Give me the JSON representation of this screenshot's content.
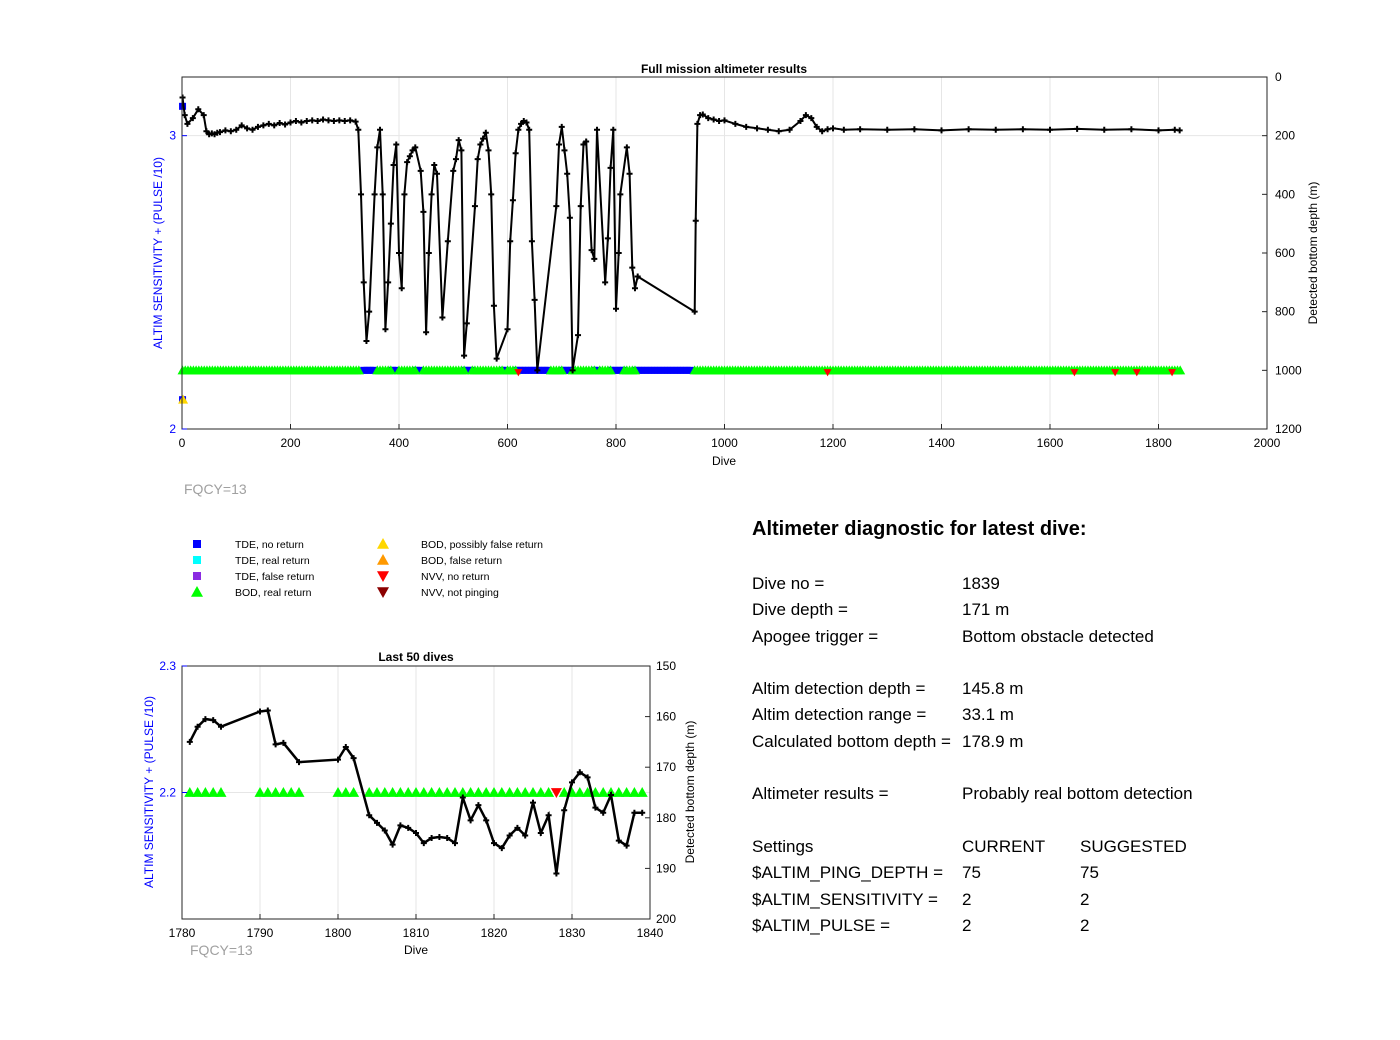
{
  "colors": {
    "tde_no_return": "#0000ff",
    "tde_real_return": "#00ffff",
    "tde_false_return": "#8b2be2",
    "bod_real_return": "#00ff00",
    "bod_possibly_false": "#ffd700",
    "bod_false_return": "#ff9900",
    "nvv_no_return": "#ff0000",
    "nvv_not_pinging": "#8b0000",
    "left_axis": "#0000ff",
    "depth_line": "#000000",
    "fqcy_text": "#a0a0a0"
  },
  "legend": {
    "items": [
      {
        "label": "TDE, no return",
        "marker": "square",
        "color": "#0000ff"
      },
      {
        "label": "TDE, real return",
        "marker": "square",
        "color": "#00ffff"
      },
      {
        "label": "TDE, false return",
        "marker": "square",
        "color": "#8b2be2"
      },
      {
        "label": "BOD, real return",
        "marker": "triangle-up",
        "color": "#00ff00"
      },
      {
        "label": "BOD, possibly false return",
        "marker": "triangle-up",
        "color": "#ffd700"
      },
      {
        "label": "BOD, false return",
        "marker": "triangle-up",
        "color": "#ff9900"
      },
      {
        "label": "NVV, no return",
        "marker": "triangle-down",
        "color": "#ff0000"
      },
      {
        "label": "NVV, not pinging",
        "marker": "triangle-down",
        "color": "#8b0000"
      }
    ]
  },
  "diagnostic": {
    "title": "Altimeter diagnostic for latest dive:",
    "rows": [
      {
        "label": "Dive no =",
        "value": "1839",
        "value2": ""
      },
      {
        "label": "Dive depth =",
        "value": "171 m",
        "value2": ""
      },
      {
        "label": "Apogee trigger =",
        "value": "Bottom obstacle detected",
        "value2": ""
      },
      {
        "label": "",
        "value": "",
        "value2": ""
      },
      {
        "label": "Altim detection depth =",
        "value": "145.8 m",
        "value2": ""
      },
      {
        "label": "Altim detection range =",
        "value": "33.1 m",
        "value2": ""
      },
      {
        "label": "Calculated bottom depth =",
        "value": "178.9 m",
        "value2": ""
      },
      {
        "label": "",
        "value": "",
        "value2": ""
      },
      {
        "label": "Altimeter results =",
        "value": "Probably real bottom detection",
        "value2": ""
      },
      {
        "label": "",
        "value": "",
        "value2": ""
      },
      {
        "label": "Settings",
        "value": "CURRENT",
        "value2": "SUGGESTED"
      },
      {
        "label": "$ALTIM_PING_DEPTH =",
        "value": "75",
        "value2": "75"
      },
      {
        "label": "$ALTIM_SENSITIVITY =",
        "value": "2",
        "value2": "2"
      },
      {
        "label": "$ALTIM_PULSE =",
        "value": "2",
        "value2": "2"
      }
    ]
  },
  "chart_data": [
    {
      "type": "line",
      "title": "Full mission altimeter results",
      "xlabel": "Dive",
      "ylabel_left": "ALTIM SENSITIVITY + (PULSE /10)",
      "ylabel_right": "Detected bottom depth (m)",
      "footnote": "FQCY=13",
      "xlim": [
        0,
        2000
      ],
      "xticks": [
        0,
        200,
        400,
        600,
        800,
        1000,
        1200,
        1400,
        1600,
        1800,
        2000
      ],
      "ylim_left": [
        2,
        3.2
      ],
      "yticks_left": [
        2,
        3
      ],
      "ylim_right": [
        1200,
        0
      ],
      "yticks_right": [
        0,
        200,
        400,
        600,
        800,
        1000,
        1200
      ],
      "grid": true,
      "depth_series": {
        "name": "Detected bottom depth",
        "x": [
          1,
          5,
          10,
          20,
          30,
          40,
          45,
          50,
          55,
          60,
          65,
          70,
          80,
          90,
          100,
          110,
          120,
          130,
          140,
          150,
          160,
          170,
          180,
          190,
          200,
          210,
          220,
          230,
          240,
          250,
          260,
          270,
          280,
          290,
          300,
          310,
          320,
          325,
          330,
          335,
          340,
          345,
          355,
          360,
          365,
          370,
          375,
          380,
          385,
          390,
          395,
          400,
          405,
          410,
          415,
          420,
          425,
          430,
          440,
          445,
          450,
          455,
          460,
          465,
          470,
          480,
          490,
          500,
          505,
          510,
          515,
          520,
          525,
          540,
          545,
          550,
          555,
          560,
          565,
          570,
          575,
          580,
          600,
          605,
          610,
          615,
          620,
          625,
          630,
          635,
          640,
          645,
          650,
          655,
          690,
          695,
          700,
          705,
          710,
          715,
          720,
          730,
          735,
          740,
          745,
          755,
          760,
          765,
          780,
          785,
          790,
          795,
          800,
          805,
          808,
          820,
          825,
          830,
          835,
          840,
          945,
          947,
          950,
          955,
          960,
          970,
          980,
          990,
          1000,
          1020,
          1040,
          1060,
          1080,
          1100,
          1120,
          1140,
          1150,
          1160,
          1170,
          1180,
          1190,
          1200,
          1220,
          1250,
          1300,
          1350,
          1400,
          1450,
          1500,
          1550,
          1600,
          1650,
          1700,
          1750,
          1800,
          1830,
          1839
        ],
        "y": [
          70,
          130,
          160,
          140,
          110,
          130,
          185,
          195,
          192,
          195,
          190,
          188,
          182,
          185,
          180,
          165,
          175,
          180,
          170,
          165,
          160,
          165,
          157,
          162,
          155,
          150,
          155,
          150,
          148,
          150,
          145,
          148,
          150,
          148,
          150,
          148,
          152,
          180,
          400,
          700,
          900,
          800,
          400,
          240,
          180,
          400,
          860,
          700,
          500,
          300,
          230,
          600,
          720,
          400,
          290,
          270,
          250,
          240,
          320,
          460,
          870,
          600,
          400,
          300,
          330,
          820,
          560,
          320,
          280,
          215,
          250,
          950,
          840,
          440,
          280,
          230,
          210,
          190,
          250,
          400,
          780,
          960,
          860,
          560,
          420,
          260,
          180,
          160,
          150,
          155,
          180,
          560,
          760,
          1000,
          440,
          230,
          170,
          250,
          330,
          480,
          1000,
          880,
          440,
          230,
          220,
          590,
          620,
          180,
          700,
          550,
          310,
          180,
          790,
          600,
          400,
          240,
          330,
          650,
          720,
          680,
          800,
          490,
          160,
          130,
          128,
          140,
          145,
          150,
          148,
          160,
          170,
          175,
          180,
          185,
          180,
          150,
          130,
          140,
          170,
          185,
          178,
          175,
          180,
          178,
          180,
          178,
          182,
          178,
          180,
          178,
          180,
          177,
          180,
          178,
          182,
          180,
          182
        ]
      },
      "altim_markers": {
        "bod_real_return_y": 2.2,
        "tde_no_return_y": 2.2,
        "nvv_no_return_dives": [
          620,
          1190,
          1645,
          1720,
          1760,
          1825
        ],
        "first_dive_tde_y": 3.1,
        "first_dive_bod_possibly_false_y": 2.1,
        "first_dive_depth_outlier": 70
      }
    },
    {
      "type": "line",
      "title": "Last 50 dives",
      "xlabel": "Dive",
      "ylabel_left": "ALTIM SENSITIVITY + (PULSE /10)",
      "ylabel_right": "Detected bottom depth (m)",
      "footnote": "FQCY=13",
      "xlim": [
        1780,
        1840
      ],
      "xticks": [
        1780,
        1790,
        1800,
        1810,
        1820,
        1830,
        1840
      ],
      "ylim_left": [
        2.1,
        2.3
      ],
      "yticks_left": [
        2.2,
        2.3
      ],
      "ylim_right": [
        200,
        150
      ],
      "yticks_right": [
        150,
        160,
        170,
        180,
        190,
        200
      ],
      "grid": true,
      "depth_series": {
        "name": "Detected bottom depth",
        "x": [
          1781,
          1782,
          1783,
          1784,
          1785,
          1790,
          1791,
          1792,
          1793,
          1795,
          1800,
          1801,
          1802,
          1804,
          1805,
          1806,
          1807,
          1808,
          1809,
          1810,
          1811,
          1812,
          1813,
          1814,
          1815,
          1816,
          1817,
          1818,
          1819,
          1820,
          1821,
          1822,
          1823,
          1824,
          1825,
          1826,
          1827,
          1828,
          1829,
          1830,
          1831,
          1832,
          1833,
          1834,
          1835,
          1836,
          1837,
          1838,
          1839
        ],
        "y": [
          165,
          162,
          160.5,
          160.7,
          162,
          159,
          158.8,
          165.5,
          165.2,
          169,
          168.5,
          166,
          168.2,
          179.5,
          181,
          182.5,
          185.3,
          181.5,
          182,
          183,
          185,
          184,
          183.8,
          184,
          185,
          176,
          180.5,
          177.5,
          180.5,
          185,
          186,
          183.5,
          182,
          183.5,
          177,
          183,
          179.5,
          191,
          178.5,
          173,
          171,
          172,
          178,
          179,
          175.5,
          184.5,
          185.5,
          179,
          179
        ]
      },
      "bod_real_return_dives": [
        1781,
        1782,
        1783,
        1784,
        1785,
        1790,
        1791,
        1792,
        1793,
        1794,
        1795,
        1800,
        1801,
        1802,
        1804,
        1805,
        1806,
        1807,
        1808,
        1809,
        1810,
        1811,
        1812,
        1813,
        1814,
        1815,
        1816,
        1817,
        1818,
        1819,
        1820,
        1821,
        1822,
        1823,
        1824,
        1825,
        1826,
        1827,
        1829,
        1830,
        1831,
        1832,
        1833,
        1834,
        1835,
        1836,
        1837,
        1838,
        1839
      ],
      "nvv_no_return_dives": [
        1828
      ],
      "marker_y": 2.2
    }
  ]
}
